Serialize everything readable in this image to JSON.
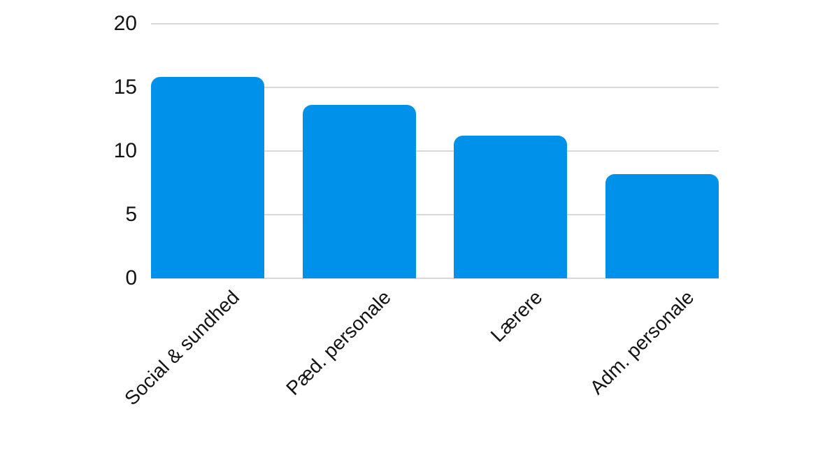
{
  "chart_data": {
    "type": "bar",
    "categories": [
      "Social & sundhed",
      "Pæd. personale",
      "Lærere",
      "Adm. personale"
    ],
    "values": [
      15.8,
      13.6,
      11.2,
      8.2
    ],
    "title": "",
    "xlabel": "",
    "ylabel": "",
    "ylim": [
      0,
      20
    ],
    "yticks": [
      0,
      5,
      10,
      15,
      20
    ],
    "grid": true,
    "legend": false,
    "label_rotation_deg": -45,
    "colors": {
      "bar": "#0091ea",
      "gridline": "#d9d9d9",
      "baseline": "#d9d9d9",
      "tick_text": "#141414",
      "background": "#ffffff"
    }
  }
}
